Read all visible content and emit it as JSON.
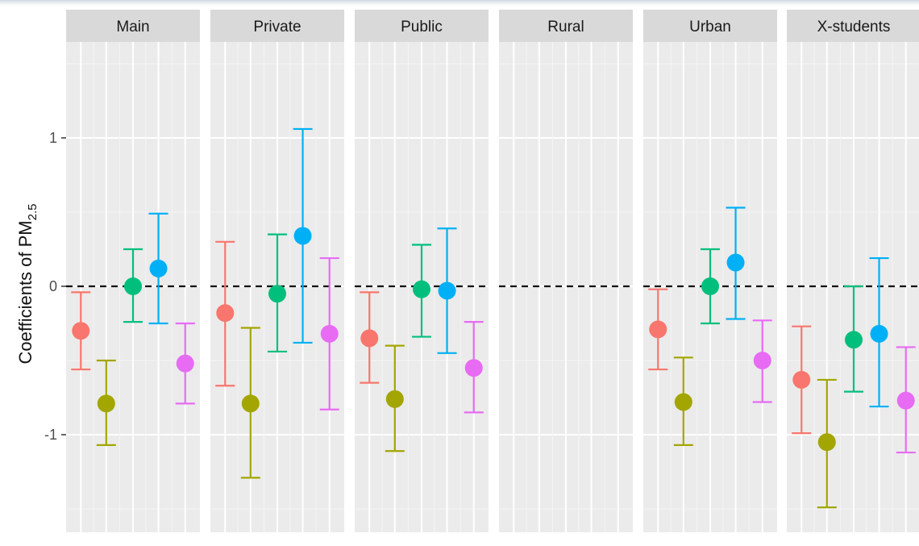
{
  "chart_data": {
    "type": "scatter",
    "subtype": "faceted-point-errorbar",
    "facets": [
      "Main",
      "Private",
      "Public",
      "Rural",
      "Urban",
      "X-students"
    ],
    "ylabel": {
      "main": "Coefficients of PM",
      "subscript": "2.5"
    },
    "yticks": [
      1,
      0,
      -1
    ],
    "ytick_labels": [
      "1",
      "0",
      "-1"
    ],
    "ylim": [
      -1.67,
      1.72
    ],
    "reference_line": {
      "y": 0,
      "style": "dashed"
    },
    "grid": true,
    "legend": "none",
    "series": [
      {
        "color": "#F8766D",
        "estimates": [
          -0.3,
          -0.18,
          -0.35,
          null,
          -0.29,
          -0.63
        ],
        "lower": [
          -0.56,
          -0.67,
          -0.65,
          null,
          -0.56,
          -0.99
        ],
        "upper": [
          -0.04,
          0.3,
          -0.04,
          null,
          -0.02,
          -0.27
        ]
      },
      {
        "color": "#A3A500",
        "estimates": [
          -0.79,
          -0.79,
          -0.76,
          null,
          -0.78,
          -1.05
        ],
        "lower": [
          -1.07,
          -1.29,
          -1.11,
          null,
          -1.07,
          -1.49
        ],
        "upper": [
          -0.5,
          -0.28,
          -0.4,
          null,
          -0.48,
          -0.63
        ]
      },
      {
        "color": "#00BF7D",
        "estimates": [
          0.0,
          -0.05,
          -0.02,
          null,
          0.0,
          -0.36
        ],
        "lower": [
          -0.24,
          -0.44,
          -0.34,
          null,
          -0.25,
          -0.71
        ],
        "upper": [
          0.25,
          0.35,
          0.28,
          null,
          0.25,
          0.0
        ]
      },
      {
        "color": "#00B0F6",
        "estimates": [
          0.12,
          0.34,
          -0.03,
          null,
          0.16,
          -0.32
        ],
        "lower": [
          -0.25,
          -0.38,
          -0.45,
          null,
          -0.22,
          -0.81
        ],
        "upper": [
          0.49,
          1.06,
          0.39,
          null,
          0.53,
          0.19
        ]
      },
      {
        "color": "#E76BF3",
        "estimates": [
          -0.52,
          -0.32,
          -0.55,
          null,
          -0.5,
          -0.77
        ],
        "lower": [
          -0.79,
          -0.83,
          -0.85,
          null,
          -0.78,
          -1.12
        ],
        "upper": [
          -0.25,
          0.19,
          -0.24,
          null,
          -0.23,
          -0.41
        ]
      }
    ]
  }
}
